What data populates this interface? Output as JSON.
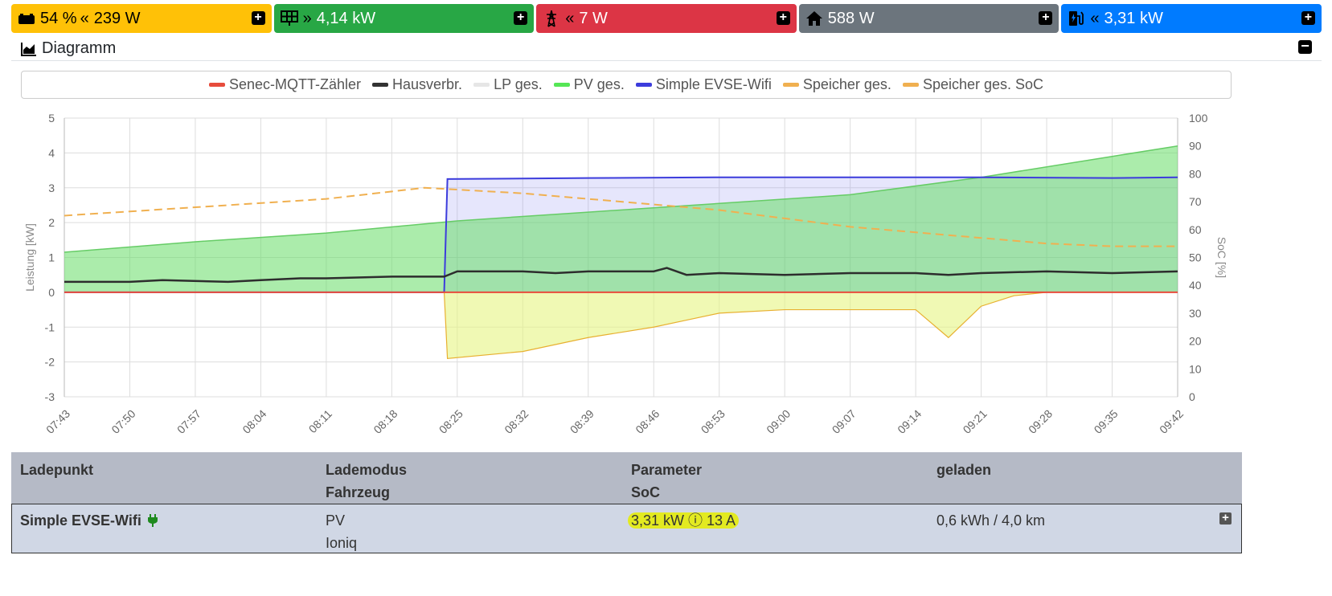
{
  "cards": [
    {
      "icon": "battery-icon",
      "direction": "«",
      "value": "54 % ",
      "value2": "239 W"
    },
    {
      "icon": "solar-panel-icon",
      "direction": "»",
      "value": "4,14 kW"
    },
    {
      "icon": "grid-tower-icon",
      "direction": "«",
      "value": "7 W"
    },
    {
      "icon": "house-icon",
      "value": "588 W"
    },
    {
      "icon": "charging-station-icon",
      "direction": "«",
      "value": "3,31 kW"
    }
  ],
  "diagram": {
    "title": "Diagramm"
  },
  "legend": [
    {
      "label": "Senec-MQTT-Zähler",
      "color": "#e74c3c"
    },
    {
      "label": "Hausverbr.",
      "color": "#333333"
    },
    {
      "label": "LP ges.",
      "color": "#e6e6e6"
    },
    {
      "label": "PV ges.",
      "color": "#55e655"
    },
    {
      "label": "Simple EVSE-Wifi",
      "color": "#3c3cdc"
    },
    {
      "label": "Speicher ges.",
      "color": "#f0b050"
    },
    {
      "label": "Speicher ges. SoC",
      "color": "#f0b050"
    }
  ],
  "chart_data": {
    "type": "line",
    "ylabel": "Leistung [kW]",
    "y2label": "SoC [%]",
    "ylim": [
      -3,
      5
    ],
    "y2lim": [
      0,
      100
    ],
    "yticks": [
      5,
      4,
      3,
      2,
      1,
      0,
      -1,
      -2,
      -3
    ],
    "y2ticks": [
      100,
      90,
      80,
      70,
      60,
      50,
      40,
      30,
      20,
      10,
      0
    ],
    "xticks": [
      "07:43",
      "07:50",
      "07:57",
      "08:04",
      "08:11",
      "08:18",
      "08:25",
      "08:32",
      "08:39",
      "08:46",
      "08:53",
      "09:00",
      "09:07",
      "09:14",
      "09:21",
      "09:28",
      "09:35",
      "09:42"
    ],
    "series": [
      {
        "name": "PV ges.",
        "color": "#66dd66",
        "x": [
          0,
          2,
          4,
          6,
          8,
          10,
          12,
          14,
          16,
          17
        ],
        "y": [
          1.15,
          1.45,
          1.7,
          2.05,
          2.3,
          2.55,
          2.8,
          3.3,
          3.9,
          4.2
        ]
      },
      {
        "name": "Simple EVSE-Wifi",
        "color": "#3c3cdc",
        "x": [
          0,
          5.8,
          5.85,
          8,
          10,
          12,
          14,
          16,
          17
        ],
        "y": [
          0,
          0,
          3.25,
          3.28,
          3.3,
          3.3,
          3.3,
          3.28,
          3.3
        ]
      },
      {
        "name": "Hausverbr.",
        "color": "#2d2d2d",
        "x": [
          0,
          1,
          1.5,
          2.5,
          3,
          3.6,
          4,
          5,
          5.8,
          6,
          7,
          7.5,
          8,
          9,
          9.2,
          9.5,
          10,
          11,
          12,
          13,
          13.5,
          14,
          15,
          16,
          17
        ],
        "y": [
          0.3,
          0.3,
          0.35,
          0.3,
          0.35,
          0.4,
          0.4,
          0.45,
          0.45,
          0.6,
          0.6,
          0.55,
          0.6,
          0.6,
          0.7,
          0.5,
          0.55,
          0.5,
          0.55,
          0.55,
          0.5,
          0.55,
          0.6,
          0.55,
          0.6
        ]
      },
      {
        "name": "Speicher ges.",
        "color": "#f0b050",
        "x": [
          0,
          5.8,
          5.85,
          7,
          8,
          9,
          9.5,
          10,
          11,
          12,
          13,
          13.5,
          14,
          14.5,
          15,
          16,
          17
        ],
        "y": [
          0,
          0,
          -1.9,
          -1.7,
          -1.3,
          -1.0,
          -0.8,
          -0.6,
          -0.5,
          -0.5,
          -0.5,
          -1.3,
          -0.4,
          -0.1,
          0,
          0,
          0
        ]
      },
      {
        "name": "Senec-MQTT-Zähler",
        "color": "#e74c3c",
        "x": [
          0,
          17
        ],
        "y": [
          0,
          0
        ]
      },
      {
        "name": "Speicher ges. SoC",
        "color": "#f0b050",
        "axis": "y2",
        "x": [
          0,
          2,
          4,
          5.5,
          7,
          8,
          9,
          10,
          11,
          12,
          13,
          14,
          15,
          16,
          17
        ],
        "y": [
          65,
          68,
          71,
          75,
          73,
          71,
          69,
          67,
          64,
          61,
          59,
          57,
          55,
          54,
          54
        ]
      }
    ]
  },
  "table": {
    "headers": [
      {
        "l1": "Ladepunkt",
        "l2": ""
      },
      {
        "l1": "Lademodus",
        "l2": "Fahrzeug"
      },
      {
        "l1": "Parameter",
        "l2": "SoC"
      },
      {
        "l1": "geladen",
        "l2": ""
      }
    ],
    "row": {
      "name": "Simple EVSE-Wifi",
      "mode": "PV",
      "vehicle": "Ioniq",
      "param": "3,31 kW ⓘ 13 A",
      "charged": "0,6 kWh / 4,0 km"
    }
  }
}
